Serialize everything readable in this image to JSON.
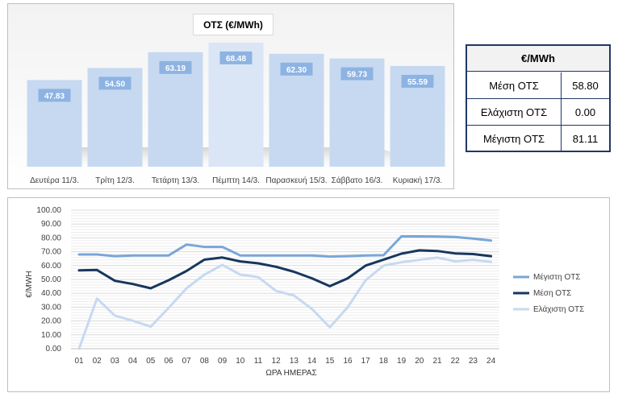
{
  "chart_data": [
    {
      "type": "bar",
      "title": "ΟΤΣ (€/MWh)",
      "categories": [
        "Δευτέρα 11/3.",
        "Τρίτη 12/3.",
        "Τετάρτη 13/3.",
        "Πέμπτη 14/3.",
        "Παρασκευή 15/3.",
        "Σάββατο 16/3.",
        "Κυριακή 17/3."
      ],
      "values": [
        47.83,
        54.5,
        63.19,
        68.48,
        62.3,
        59.73,
        55.59
      ],
      "value_labels": [
        "47.83",
        "54.50",
        "63.19",
        "68.48",
        "62.30",
        "59.73",
        "55.59"
      ],
      "ylim": [
        0,
        72
      ],
      "grid": false,
      "legend": "none",
      "colors": {
        "bar": "#c6d9f1",
        "highlight": "#dae6f5",
        "label_bg": "#8db3e2"
      }
    },
    {
      "type": "table",
      "header": "€/MWh",
      "rows": [
        {
          "label": "Μέση ΟΤΣ",
          "value": "58.80"
        },
        {
          "label": "Ελάχιστη ΟΤΣ",
          "value": "0.00"
        },
        {
          "label": "Μέγιστη ΟΤΣ",
          "value": "81.11"
        }
      ]
    },
    {
      "type": "line",
      "xlabel": "ΩΡΑ ΗΜΕΡΑΣ",
      "ylabel": "€/MWH",
      "x": [
        "01",
        "02",
        "03",
        "04",
        "05",
        "06",
        "07",
        "08",
        "09",
        "10",
        "11",
        "12",
        "13",
        "14",
        "15",
        "16",
        "17",
        "18",
        "19",
        "20",
        "21",
        "22",
        "23",
        "24"
      ],
      "yticks": [
        "0.00",
        "10.00",
        "20.00",
        "30.00",
        "40.00",
        "50.00",
        "60.00",
        "70.00",
        "80.00",
        "90.00",
        "100.00"
      ],
      "ylim": [
        0,
        100
      ],
      "grid": true,
      "legend": "right",
      "series": [
        {
          "name": "Μέγιστη ΟΤΣ",
          "color": "#7aa6d8",
          "values": [
            68,
            68,
            66.8,
            67.3,
            67.3,
            67.3,
            75.2,
            73.5,
            73.5,
            67.3,
            67.3,
            67.3,
            67.3,
            67.3,
            66.5,
            66.8,
            67.3,
            67.5,
            81.1,
            81.1,
            81,
            80.6,
            79.5,
            78
          ]
        },
        {
          "name": "Μέση ΟΤΣ",
          "color": "#17375e",
          "values": [
            56.5,
            56.8,
            49,
            46.7,
            43.6,
            49.4,
            56.1,
            64.3,
            65.8,
            63,
            61.6,
            59.1,
            55.5,
            50.8,
            45.1,
            50.8,
            60,
            64.3,
            68.6,
            71,
            70.5,
            68.8,
            68.3,
            66.8
          ]
        },
        {
          "name": "Ελάχιστη ΟΤΣ",
          "color": "#c6d9f1",
          "values": [
            0,
            36.2,
            23.9,
            20.2,
            15.9,
            29.4,
            43.6,
            53.5,
            60.5,
            53.5,
            51.7,
            41.7,
            38.4,
            28.7,
            15.4,
            30,
            49.4,
            60,
            62.4,
            64.1,
            65.8,
            63.1,
            64.2,
            62.7
          ]
        }
      ]
    }
  ]
}
